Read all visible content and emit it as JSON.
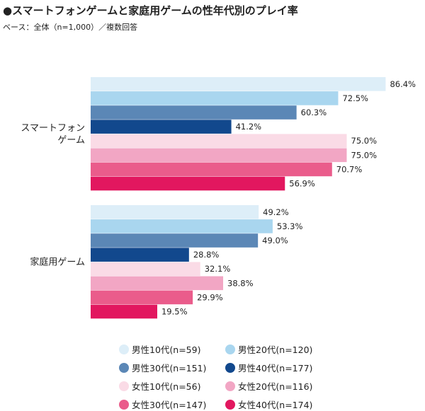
{
  "title": "●スマートフォンゲームと家庭用ゲームの性年代別のプレイ率",
  "subtitle": "ベース：全体（n=1,000）／複数回答",
  "chart_data": {
    "type": "bar",
    "orientation": "horizontal",
    "unit": "%",
    "categories": [
      "スマートフォンゲーム",
      "家庭用ゲーム"
    ],
    "category_lines": [
      [
        "スマートフォン",
        "ゲーム"
      ],
      [
        "家庭用ゲーム"
      ]
    ],
    "xlim": [
      0,
      100
    ],
    "grid": false,
    "legend_position": "bottom",
    "series": [
      {
        "name": "男性10代(n=59)",
        "color": "#ddeef8",
        "values": [
          86.4,
          49.2
        ]
      },
      {
        "name": "男性20代(n=120)",
        "color": "#a9d6ef",
        "values": [
          72.5,
          53.3
        ]
      },
      {
        "name": "男性30代(n=151)",
        "color": "#5b87b6",
        "values": [
          60.3,
          49.0
        ]
      },
      {
        "name": "男性40代(n=177)",
        "color": "#12488d",
        "values": [
          41.2,
          28.8
        ]
      },
      {
        "name": "女性10代(n=56)",
        "color": "#fadbe6",
        "values": [
          75.0,
          32.1
        ]
      },
      {
        "name": "女性20代(n=116)",
        "color": "#f2a6c4",
        "values": [
          75.0,
          38.8
        ]
      },
      {
        "name": "女性30代(n=147)",
        "color": "#ea5c8b",
        "values": [
          70.7,
          29.9
        ]
      },
      {
        "name": "女性40代(n=174)",
        "color": "#e2175f",
        "values": [
          56.9,
          19.5
        ]
      }
    ]
  }
}
